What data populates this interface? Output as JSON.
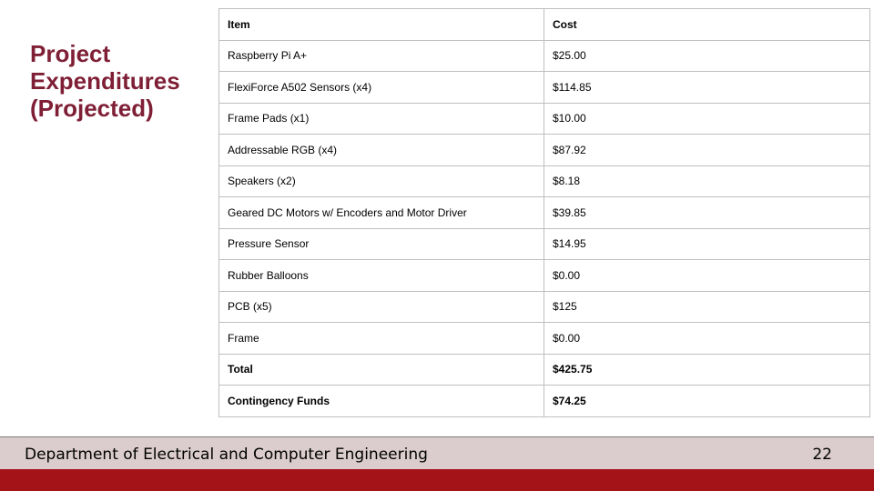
{
  "slide": {
    "title_lines": [
      "Project",
      "Expenditures",
      "(Projected)"
    ]
  },
  "table": {
    "headers": [
      "Item",
      "Cost"
    ],
    "rows": [
      [
        "Raspberry Pi A+",
        "$25.00"
      ],
      [
        "FlexiForce A502 Sensors (x4)",
        "$114.85"
      ],
      [
        "Frame Pads (x1)",
        "$10.00"
      ],
      [
        "Addressable RGB (x4)",
        "$87.92"
      ],
      [
        "Speakers (x2)",
        "$8.18"
      ],
      [
        "Geared DC Motors w/ Encoders and Motor Driver",
        "$39.85"
      ],
      [
        "Pressure Sensor",
        "$14.95"
      ],
      [
        "Rubber Balloons",
        "$0.00"
      ],
      [
        "PCB (x5)",
        "$125"
      ],
      [
        "Frame",
        "$0.00"
      ]
    ],
    "summary_rows": [
      [
        "Total",
        "$425.75"
      ],
      [
        "Contingency Funds",
        "$74.25"
      ]
    ]
  },
  "footer": {
    "department": "Department of Electrical and Computer Engineering",
    "page_number": "22"
  },
  "colors": {
    "title": "#7f1f35",
    "footer_band": "#dbcdcd",
    "footer_bar": "#a41318",
    "table_border": "#bfbfbf"
  }
}
